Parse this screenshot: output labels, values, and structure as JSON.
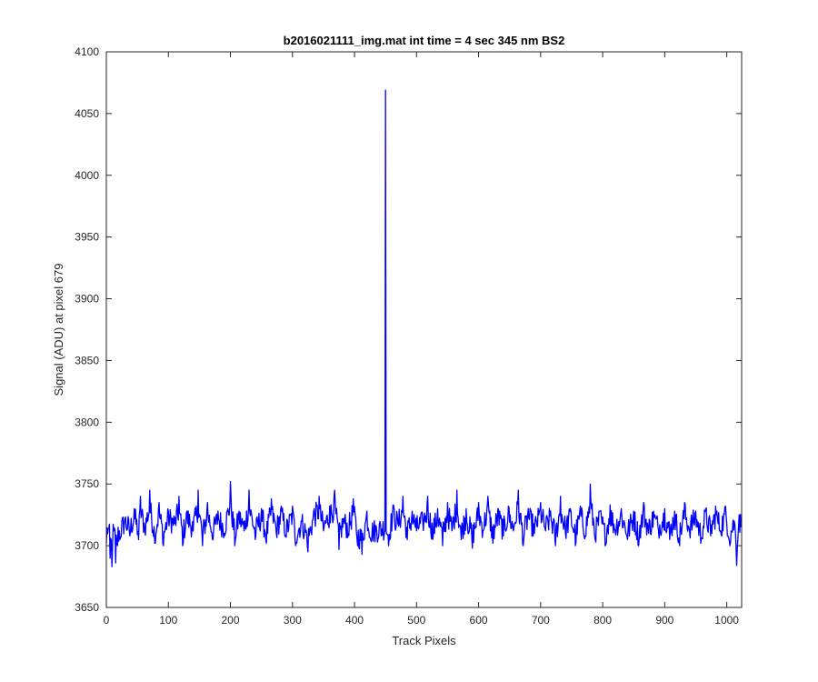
{
  "chart_data": {
    "type": "line",
    "title": "b2016021111_img.mat int time = 4 sec  345 nm BS2",
    "xlabel": "Track Pixels",
    "ylabel": "Signal (ADU) at pixel 679",
    "xlim": [
      0,
      1024
    ],
    "ylim": [
      3650,
      4100
    ],
    "xticks": [
      0,
      100,
      200,
      300,
      400,
      500,
      600,
      700,
      800,
      900,
      1000
    ],
    "yticks": [
      3650,
      3700,
      3750,
      3800,
      3850,
      3900,
      3950,
      4000,
      4050,
      4100
    ],
    "grid": false,
    "legend": "none",
    "series": [
      {
        "color": "#0000ff",
        "baseline": 3717,
        "noise_amplitude": 10,
        "n_points": 1024,
        "points": [
          [
            0,
            3702
          ],
          [
            3,
            3714
          ],
          [
            6,
            3690
          ],
          [
            9,
            3683
          ],
          [
            12,
            3712
          ],
          [
            15,
            3686
          ],
          [
            18,
            3700
          ],
          [
            22,
            3705
          ],
          [
            30,
            3722
          ],
          [
            38,
            3708
          ],
          [
            45,
            3730
          ],
          [
            52,
            3705
          ],
          [
            55,
            3740
          ],
          [
            62,
            3712
          ],
          [
            70,
            3745
          ],
          [
            78,
            3702
          ],
          [
            85,
            3735
          ],
          [
            92,
            3700
          ],
          [
            100,
            3728
          ],
          [
            110,
            3718
          ],
          [
            117,
            3740
          ],
          [
            123,
            3700
          ],
          [
            130,
            3728
          ],
          [
            140,
            3712
          ],
          [
            148,
            3745
          ],
          [
            155,
            3700
          ],
          [
            163,
            3735
          ],
          [
            172,
            3705
          ],
          [
            180,
            3728
          ],
          [
            190,
            3710
          ],
          [
            200,
            3752
          ],
          [
            207,
            3700
          ],
          [
            214,
            3728
          ],
          [
            222,
            3712
          ],
          [
            230,
            3745
          ],
          [
            240,
            3705
          ],
          [
            250,
            3730
          ],
          [
            258,
            3702
          ],
          [
            266,
            3738
          ],
          [
            274,
            3710
          ],
          [
            282,
            3732
          ],
          [
            290,
            3707
          ],
          [
            300,
            3732
          ],
          [
            305,
            3700
          ],
          [
            315,
            3720
          ],
          [
            325,
            3695
          ],
          [
            335,
            3730
          ],
          [
            343,
            3740
          ],
          [
            350,
            3712
          ],
          [
            360,
            3732
          ],
          [
            368,
            3745
          ],
          [
            375,
            3697
          ],
          [
            382,
            3722
          ],
          [
            390,
            3710
          ],
          [
            398,
            3738
          ],
          [
            405,
            3700
          ],
          [
            412,
            3693
          ],
          [
            420,
            3728
          ],
          [
            426,
            3705
          ],
          [
            449,
            3712
          ],
          [
            450,
            4069
          ],
          [
            451,
            3712
          ],
          [
            455,
            3700
          ],
          [
            462,
            3733
          ],
          [
            470,
            3718
          ],
          [
            478,
            3740
          ],
          [
            485,
            3705
          ],
          [
            493,
            3728
          ],
          [
            500,
            3712
          ],
          [
            510,
            3720
          ],
          [
            518,
            3740
          ],
          [
            526,
            3705
          ],
          [
            534,
            3730
          ],
          [
            542,
            3700
          ],
          [
            550,
            3735
          ],
          [
            557,
            3712
          ],
          [
            565,
            3745
          ],
          [
            572,
            3705
          ],
          [
            580,
            3730
          ],
          [
            590,
            3698
          ],
          [
            600,
            3735
          ],
          [
            607,
            3712
          ],
          [
            615,
            3740
          ],
          [
            623,
            3702
          ],
          [
            631,
            3730
          ],
          [
            640,
            3708
          ],
          [
            648,
            3732
          ],
          [
            656,
            3712
          ],
          [
            664,
            3745
          ],
          [
            672,
            3700
          ],
          [
            680,
            3730
          ],
          [
            690,
            3710
          ],
          [
            700,
            3735
          ],
          [
            708,
            3712
          ],
          [
            716,
            3728
          ],
          [
            724,
            3700
          ],
          [
            732,
            3740
          ],
          [
            740,
            3710
          ],
          [
            748,
            3730
          ],
          [
            756,
            3700
          ],
          [
            764,
            3732
          ],
          [
            772,
            3708
          ],
          [
            780,
            3750
          ],
          [
            788,
            3705
          ],
          [
            796,
            3728
          ],
          [
            804,
            3700
          ],
          [
            812,
            3733
          ],
          [
            820,
            3712
          ],
          [
            830,
            3730
          ],
          [
            840,
            3705
          ],
          [
            850,
            3728
          ],
          [
            858,
            3700
          ],
          [
            866,
            3735
          ],
          [
            874,
            3710
          ],
          [
            882,
            3728
          ],
          [
            890,
            3712
          ],
          [
            900,
            3730
          ],
          [
            908,
            3705
          ],
          [
            916,
            3728
          ],
          [
            924,
            3700
          ],
          [
            932,
            3735
          ],
          [
            940,
            3712
          ],
          [
            950,
            3728
          ],
          [
            958,
            3702
          ],
          [
            966,
            3730
          ],
          [
            974,
            3708
          ],
          [
            982,
            3732
          ],
          [
            990,
            3712
          ],
          [
            998,
            3732
          ],
          [
            1005,
            3700
          ],
          [
            1012,
            3720
          ],
          [
            1016,
            3684
          ],
          [
            1020,
            3725
          ],
          [
            1023,
            3715
          ]
        ]
      }
    ]
  }
}
